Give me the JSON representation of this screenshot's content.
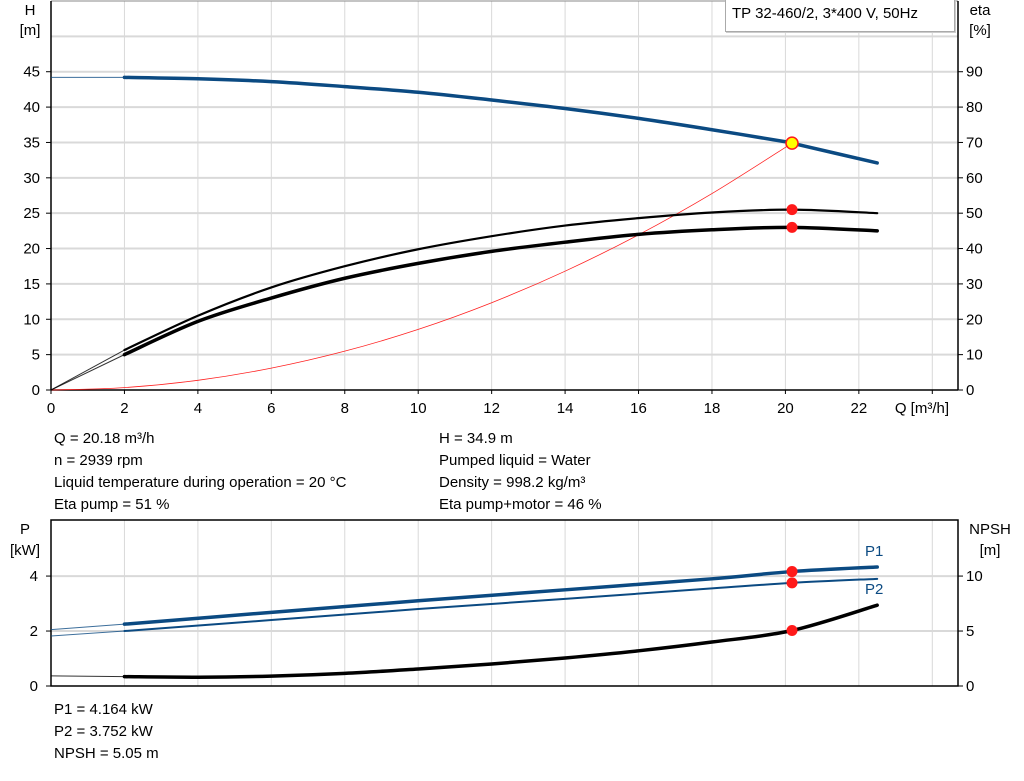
{
  "title": "TP 32-460/2, 3*400 V, 50Hz",
  "colors": {
    "head": "#0b4a82",
    "power": "#0b4a82",
    "efficiency": "#000000",
    "system": "#ff2020",
    "operating_point": "#ff1a1a",
    "duty_point_fill": "#ffff00",
    "grid": "#d9d9d9"
  },
  "chart_data": [
    {
      "type": "line",
      "xlabel": "Q [m³/h]",
      "ylabel_left": "H",
      "ylabel_left_unit": "[m]",
      "ylabel_right": "eta",
      "ylabel_right_unit": "[%]",
      "xlim": [
        0,
        24.7
      ],
      "ylim_left": [
        0,
        55
      ],
      "ylim_right": [
        0,
        110
      ],
      "xticks": [
        "0",
        "2",
        "4",
        "6",
        "8",
        "10",
        "12",
        "14",
        "16",
        "18",
        "20",
        "22"
      ],
      "yticks_left": [
        "0",
        "5",
        "10",
        "15",
        "20",
        "25",
        "30",
        "35",
        "40",
        "45"
      ],
      "yticks_right": [
        "0",
        "10",
        "20",
        "30",
        "40",
        "50",
        "60",
        "70",
        "80",
        "90"
      ],
      "grid": true,
      "series": [
        {
          "axis": "left",
          "role": "head",
          "x": [
            0,
            2,
            4,
            6,
            8,
            10,
            12,
            14,
            16,
            18,
            20,
            20.18,
            22.5
          ],
          "y": [
            44.2,
            44.2,
            44.0,
            43.6,
            42.9,
            42.1,
            41.0,
            39.8,
            38.4,
            36.8,
            35.1,
            34.9,
            32.1
          ]
        },
        {
          "axis": "right",
          "role": "eta-pump",
          "x": [
            0,
            2,
            4,
            6,
            8,
            10,
            12,
            14,
            16,
            18,
            20.18,
            22.5
          ],
          "y": [
            0,
            11.3,
            21,
            29,
            35,
            39.8,
            43.5,
            46.5,
            48.6,
            50.2,
            51,
            50
          ]
        },
        {
          "axis": "right",
          "role": "eta-pump-motor",
          "x": [
            0,
            2,
            4,
            6,
            8,
            10,
            12,
            14,
            16,
            18,
            20.18,
            22.5
          ],
          "y": [
            0,
            10,
            19.4,
            26,
            31.6,
            35.8,
            39.2,
            41.8,
            44,
            45.3,
            46,
            45
          ]
        },
        {
          "axis": "left",
          "role": "system",
          "x": [
            0,
            2,
            4,
            6,
            8,
            10,
            12,
            14,
            16,
            18,
            20.18
          ],
          "y": [
            0,
            0.34,
            1.37,
            3.09,
            5.49,
            8.57,
            12.34,
            16.8,
            21.94,
            27.77,
            34.9
          ]
        }
      ],
      "operating_points": [
        {
          "x": 20.18,
          "y": 34.9,
          "axis": "left",
          "duty": true
        },
        {
          "x": 20.18,
          "y": 51,
          "axis": "right"
        },
        {
          "x": 20.18,
          "y": 46,
          "axis": "right"
        }
      ]
    },
    {
      "type": "line",
      "ylabel_left": "P",
      "ylabel_left_unit": "[kW]",
      "ylabel_right": "NPSH",
      "ylabel_right_unit": "[m]",
      "xlim": [
        0,
        24.7
      ],
      "ylim_left": [
        0,
        6.04
      ],
      "ylim_right": [
        0,
        15.1
      ],
      "yticks_left": [
        "0",
        "2",
        "4"
      ],
      "yticks_right": [
        "0",
        "5",
        "10"
      ],
      "grid": true,
      "series": [
        {
          "name": "P1",
          "axis": "left",
          "x": [
            0,
            2,
            6,
            10,
            14,
            18,
            20.18,
            22.5
          ],
          "y": [
            2.05,
            2.25,
            2.68,
            3.1,
            3.5,
            3.9,
            4.164,
            4.33
          ]
        },
        {
          "name": "P2",
          "axis": "left",
          "x": [
            0,
            2,
            6,
            10,
            14,
            18,
            20.18,
            22.5
          ],
          "y": [
            1.82,
            2.0,
            2.4,
            2.8,
            3.17,
            3.55,
            3.752,
            3.9
          ]
        },
        {
          "axis": "right",
          "role": "npsh",
          "x": [
            0,
            2,
            4,
            6,
            8,
            10,
            12,
            14,
            16,
            18,
            20.18,
            22.5
          ],
          "y": [
            0.92,
            0.85,
            0.8,
            0.9,
            1.15,
            1.55,
            2.0,
            2.55,
            3.2,
            4.0,
            5.05,
            7.35
          ]
        }
      ],
      "operating_points": [
        {
          "x": 20.18,
          "y": 4.164,
          "axis": "left"
        },
        {
          "x": 20.18,
          "y": 3.752,
          "axis": "left"
        },
        {
          "x": 20.18,
          "y": 5.05,
          "axis": "right"
        }
      ]
    }
  ],
  "info_left": [
    "Q = 20.18 m³/h",
    "n = 2939 rpm",
    "Liquid temperature during operation = 20 °C",
    "Eta pump = 51 %"
  ],
  "info_right": [
    "H = 34.9 m",
    "Pumped liquid = Water",
    "Density = 998.2 kg/m³",
    "Eta pump+motor = 46 %"
  ],
  "info_bottom": [
    "P1 = 4.164 kW",
    "P2 = 3.752 kW",
    "NPSH = 5.05 m"
  ]
}
